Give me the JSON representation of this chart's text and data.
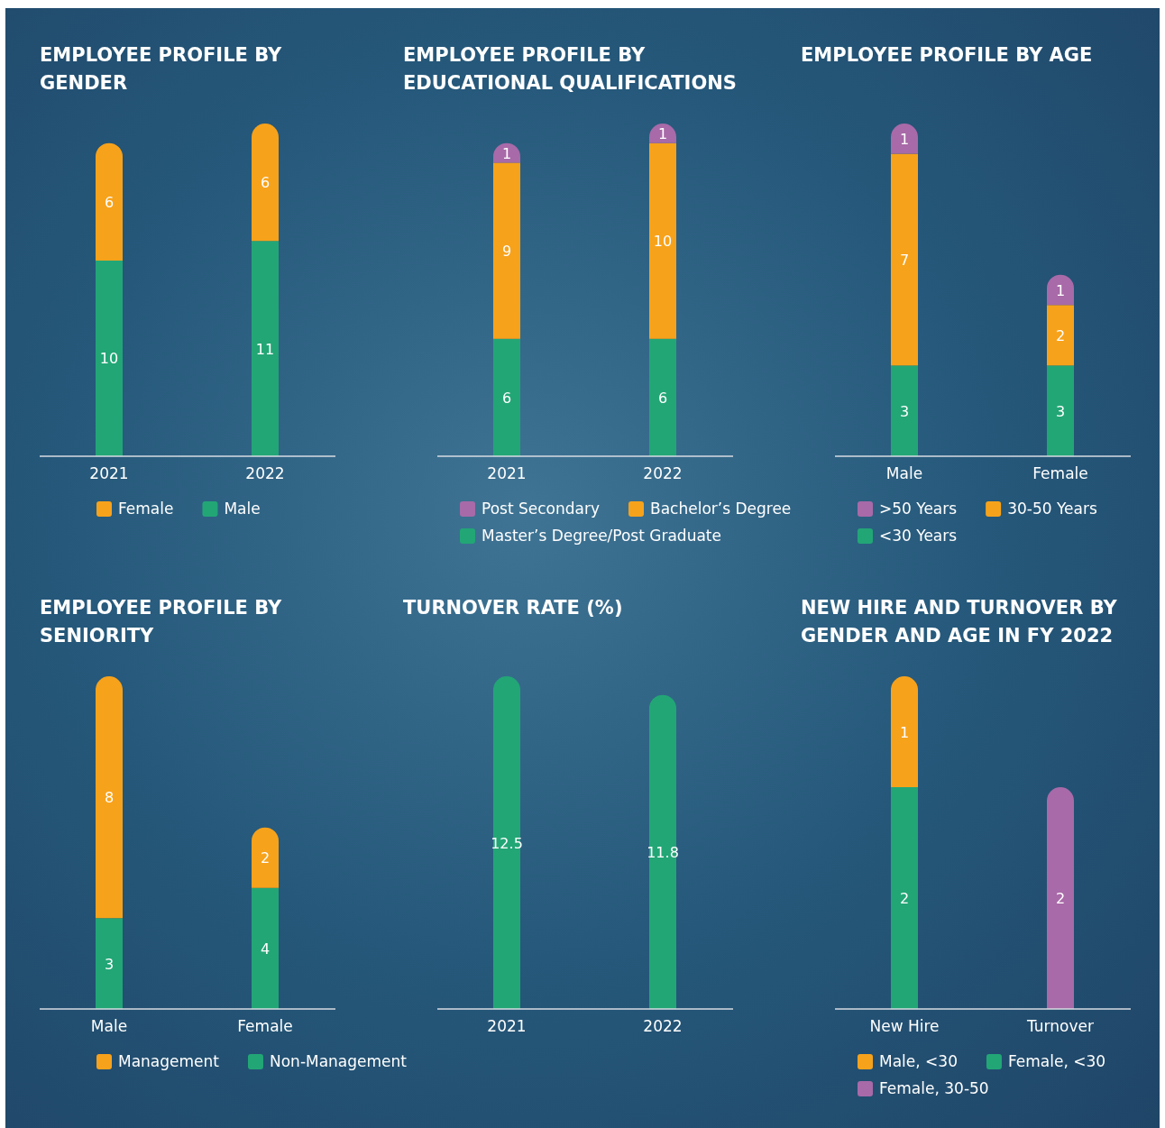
{
  "chart_data": [
    {
      "type": "bar",
      "title": "EMPLOYEE PROFILE BY GENDER",
      "categories": [
        "2021",
        "2022"
      ],
      "stacked": true,
      "data_labels": true,
      "legend": "bottom",
      "series": [
        {
          "name": "Male",
          "color": "#22a676",
          "values": [
            10,
            11
          ]
        },
        {
          "name": "Female",
          "color": "#f7a21b",
          "values": [
            6,
            6
          ]
        }
      ]
    },
    {
      "type": "bar",
      "title": "EMPLOYEE PROFILE BY EDUCATIONAL QUALIFICATIONS",
      "categories": [
        "2021",
        "2022"
      ],
      "stacked": true,
      "data_labels": true,
      "legend": "bottom",
      "series": [
        {
          "name": "Master’s Degree/Post Graduate",
          "color": "#22a676",
          "values": [
            6,
            6
          ]
        },
        {
          "name": "Bachelor’s Degree",
          "color": "#f7a21b",
          "values": [
            9,
            10
          ]
        },
        {
          "name": "Post Secondary",
          "color": "#a86aa8",
          "values": [
            1,
            1
          ]
        }
      ]
    },
    {
      "type": "bar",
      "title": "EMPLOYEE PROFILE BY AGE",
      "categories": [
        "Male",
        "Female"
      ],
      "stacked": true,
      "data_labels": true,
      "legend": "bottom",
      "series": [
        {
          "name": "<30 Years",
          "color": "#22a676",
          "values": [
            3,
            3
          ]
        },
        {
          "name": "30-50 Years",
          "color": "#f7a21b",
          "values": [
            7,
            2
          ]
        },
        {
          "name": ">50 Years",
          "color": "#a86aa8",
          "values": [
            1,
            1
          ]
        }
      ]
    },
    {
      "type": "bar",
      "title": "EMPLOYEE PROFILE BY SENIORITY",
      "categories": [
        "Male",
        "Female"
      ],
      "stacked": true,
      "data_labels": true,
      "legend": "bottom",
      "series": [
        {
          "name": "Non-Management",
          "color": "#22a676",
          "values": [
            3,
            4
          ]
        },
        {
          "name": "Management",
          "color": "#f7a21b",
          "values": [
            8,
            2
          ]
        }
      ]
    },
    {
      "type": "bar",
      "title": "TURNOVER RATE (%)",
      "categories": [
        "2021",
        "2022"
      ],
      "data_labels": true,
      "series": [
        {
          "color": "#22a676",
          "values": [
            12.5,
            11.8
          ]
        }
      ]
    },
    {
      "type": "bar",
      "title": "NEW HIRE AND TURNOVER BY GENDER AND AGE IN FY 2022",
      "categories": [
        "New Hire",
        "Turnover"
      ],
      "stacked": true,
      "data_labels": true,
      "legend": "bottom",
      "series": [
        {
          "name": "Female, 30-50",
          "color": "#a86aa8",
          "values": [
            null,
            2
          ]
        },
        {
          "name": "Female, <30",
          "color": "#22a676",
          "values": [
            2,
            null
          ]
        },
        {
          "name": "Male, <30",
          "color": "#f7a21b",
          "values": [
            1,
            null
          ]
        }
      ]
    }
  ]
}
